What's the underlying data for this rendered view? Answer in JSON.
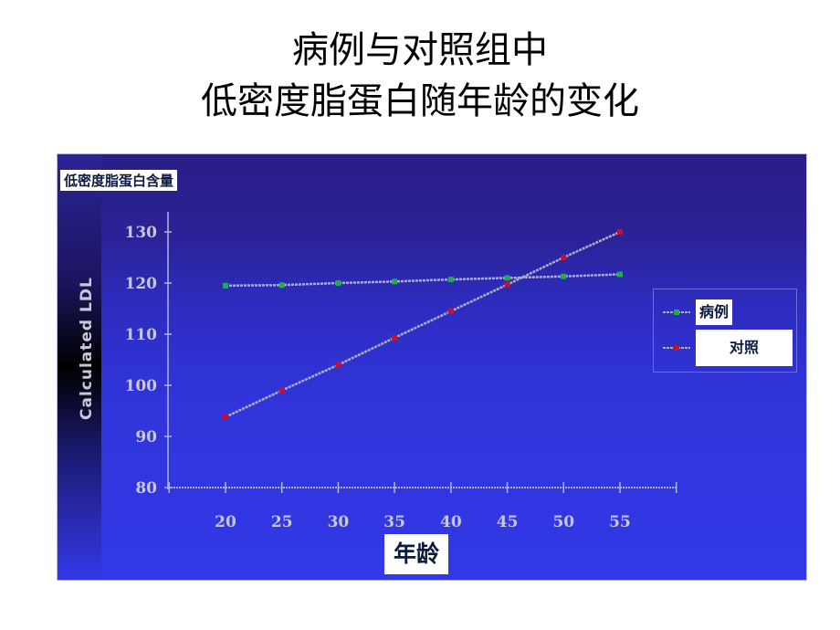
{
  "slide": {
    "title_line1": "病例与对照组中",
    "title_line2": "低密度脂蛋白随年龄的变化"
  },
  "colors": {
    "background_top": "#2a1e86",
    "background_bottom": "#3338e8",
    "case": "#1fae4a",
    "control": "#c8102e",
    "line": "#b0b0c0"
  },
  "chart_data": {
    "type": "line",
    "title": "低密度脂蛋白含量",
    "xlabel": "年龄",
    "ylabel": "Calculated LDL",
    "x": [
      20,
      25,
      30,
      35,
      40,
      45,
      50,
      55
    ],
    "xticks": [
      "20",
      "25",
      "30",
      "35",
      "40",
      "45",
      "50",
      "55"
    ],
    "yticks": [
      "80",
      "90",
      "100",
      "110",
      "120",
      "130"
    ],
    "ylim": [
      80,
      130
    ],
    "xlim": [
      15,
      60
    ],
    "grid": false,
    "legend_placement": "right",
    "series": [
      {
        "name": "病例",
        "color": "#1fae4a",
        "values": [
          119.5,
          119.6,
          120.0,
          120.3,
          120.7,
          121.0,
          121.3,
          121.7
        ]
      },
      {
        "name": "对照",
        "color": "#c8102e",
        "values": [
          93.8,
          99.0,
          104.0,
          109.3,
          114.5,
          119.7,
          125.0,
          130.0
        ]
      }
    ]
  }
}
